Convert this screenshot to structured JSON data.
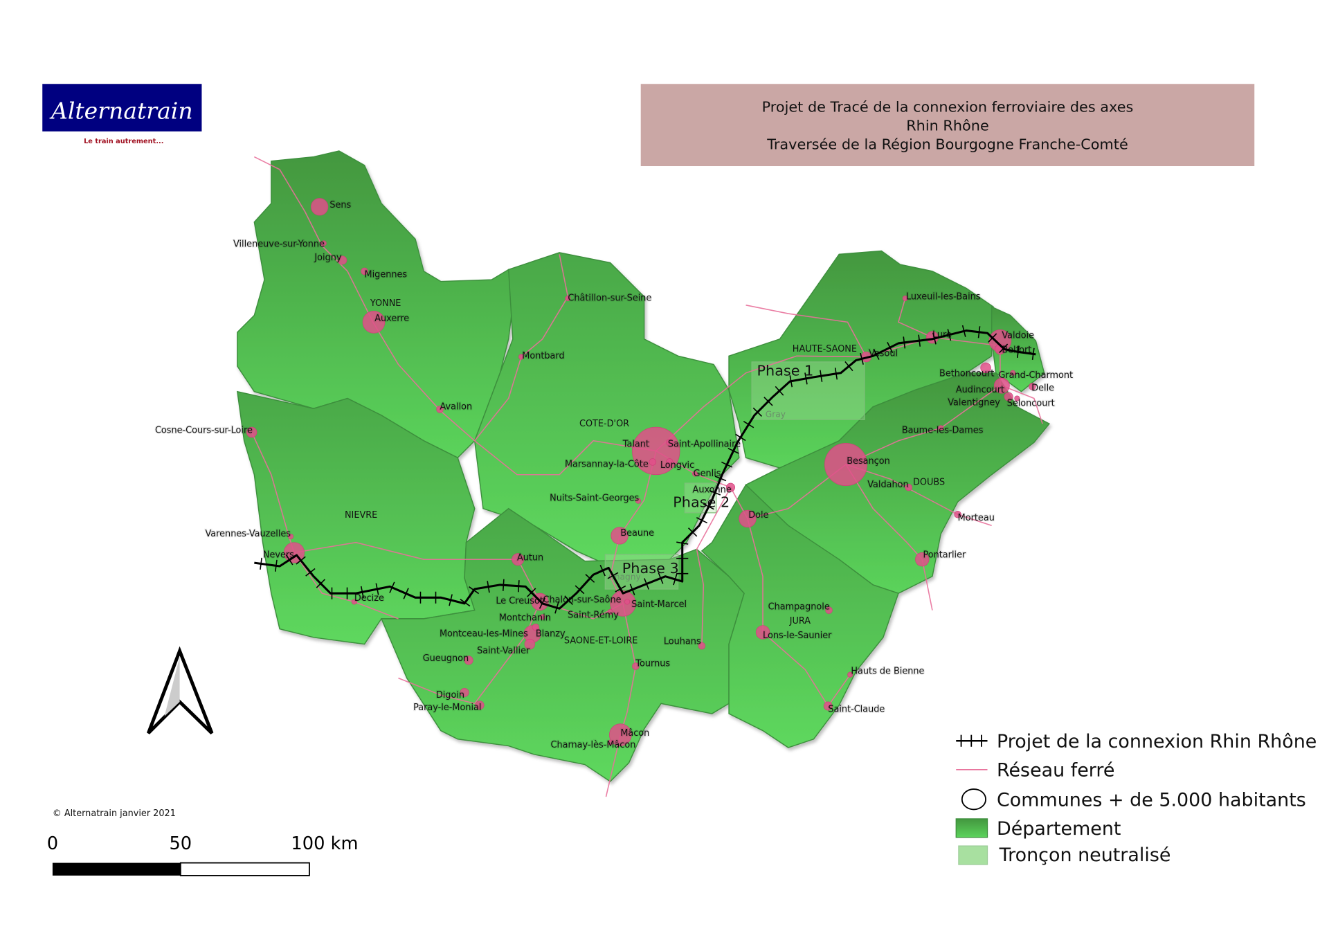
{
  "logo": {
    "name": "Alternatrain",
    "tagline": "Le train autrement...",
    "bg_color": "#000080",
    "tagline_color": "#a01020"
  },
  "title": {
    "lines": [
      "Projet de Tracé de la connexion ferroviaire des axes",
      "Rhin Rhône",
      "Traversée de la Région Bourgogne Franche-Comté"
    ],
    "bg_color": "#caa7a5"
  },
  "departments": [
    "YONNE",
    "NIEVRE",
    "COTE-D'OR",
    "SAONE-ET-LOIRE",
    "HAUTE-SAONE",
    "DOUBS",
    "JURA"
  ],
  "cities": [
    "Sens",
    "Villeneuve-sur-Yonne",
    "Joigny",
    "Migennes",
    "Auxerre",
    "Châtillon-sur-Seine",
    "Montbard",
    "Avallon",
    "Cosne-Cours-sur-Loire",
    "Talant",
    "Saint-Apollinaire",
    "Marsannay-la-Côte",
    "Longvic",
    "Genlis",
    "Auxonne",
    "Nuits-Saint-Georges",
    "Beaune",
    "Autun",
    "Dole",
    "Besançon",
    "Valdahon",
    "Morteau",
    "Pontarlier",
    "Vesoul",
    "Lure",
    "Luxeuil-les-Bains",
    "Valdoie",
    "Belfort",
    "Bethoncourt",
    "Grand-Charmont",
    "Audincourt",
    "Delle",
    "Valentigney",
    "Seloncourt",
    "Baume-les-Dames",
    "Varennes-Vauzelles",
    "Nevers",
    "Decize",
    "Le Creusot",
    "Chalon-sur-Saône",
    "Saint-Marcel",
    "Saint-Rémy",
    "Montchanin",
    "Montceau-les-Mines",
    "Blanzy",
    "Saint-Vallier",
    "Gueugnon",
    "Digoin",
    "Paray-le-Monial",
    "Tournus",
    "Louhans",
    "Mâcon",
    "Charnay-lès-Mâcon",
    "Lons-le-Saunier",
    "Champagnole",
    "Hauts de Bienne",
    "Saint-Claude"
  ],
  "neutralised_labels": [
    "Gray",
    "Chagny"
  ],
  "phases": [
    "Phase 1",
    "Phase 2",
    "Phase 3"
  ],
  "legend": {
    "items": [
      "Projet de la connexion Rhin Rhône",
      "Réseau ferré",
      "Communes + de 5.000 habitants",
      "Département",
      "Tronçon neutralisé"
    ]
  },
  "copyright": "© Alternatrain janvier 2021",
  "scale_bar": {
    "ticks": [
      "0",
      "50",
      "100 km"
    ]
  },
  "colors": {
    "dept_dark": "#45a045",
    "dept_light": "#5cd65c",
    "rail": "#e8709a",
    "city": "#e0508a",
    "project_line": "#000000"
  }
}
